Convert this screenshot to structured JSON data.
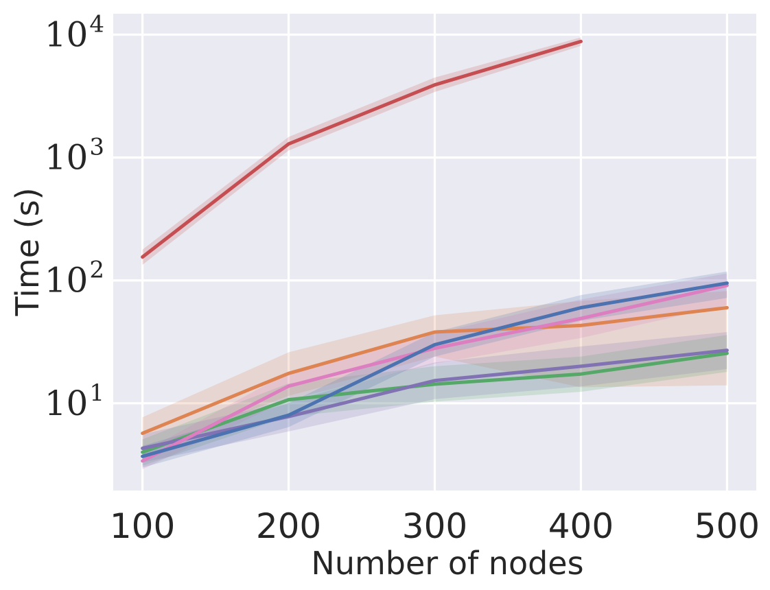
{
  "figure": {
    "background": "#ffffff",
    "plot_background": "#eaeaf2",
    "grid_color": "#ffffff",
    "text_color": "#262626"
  },
  "axes": {
    "x_label": "Number of nodes",
    "y_label": "Time (s)",
    "x_ticks": [
      {
        "label": "100",
        "value": 100
      },
      {
        "label": "200",
        "value": 200
      },
      {
        "label": "300",
        "value": 300
      },
      {
        "label": "400",
        "value": 400
      },
      {
        "label": "500",
        "value": 500
      }
    ],
    "y_ticks": [
      {
        "base": "10",
        "exponent": "4",
        "value": 10000
      },
      {
        "base": "10",
        "exponent": "3",
        "value": 1000
      },
      {
        "base": "10",
        "exponent": "2",
        "value": 100
      },
      {
        "base": "10",
        "exponent": "1",
        "value": 10
      }
    ]
  },
  "chart_data": {
    "type": "line",
    "title": "",
    "xlabel": "Number of nodes",
    "ylabel": "Time (s)",
    "x_scale": "linear",
    "y_scale": "log",
    "xlim": [
      80,
      520
    ],
    "ylim": [
      1.95,
      14800
    ],
    "grid": true,
    "legend": false,
    "band_opacity": 0.2,
    "x": [
      100,
      200,
      300,
      400,
      500
    ],
    "series": [
      {
        "name": "orange",
        "color": "#dd8452",
        "x": [
          100,
          200,
          300,
          400,
          500
        ],
        "values": [
          5.7,
          17.5,
          38,
          43,
          60
        ],
        "ci_lower": [
          4.0,
          11.5,
          24,
          13.5,
          14
        ],
        "ci_upper": [
          7.7,
          26,
          52,
          68,
          82
        ]
      },
      {
        "name": "green",
        "color": "#55a868",
        "x": [
          100,
          200,
          300,
          400,
          500
        ],
        "values": [
          4.0,
          10.7,
          14.3,
          17.3,
          25.5
        ],
        "ci_lower": [
          3.1,
          7.8,
          10.3,
          12.4,
          18
        ],
        "ci_upper": [
          5.1,
          14.5,
          20,
          24,
          36
        ]
      },
      {
        "name": "purple",
        "color": "#8172b3",
        "x": [
          100,
          200,
          300,
          400,
          500
        ],
        "values": [
          4.3,
          7.8,
          15.3,
          20,
          27
        ],
        "ci_lower": [
          3.3,
          5.9,
          10.8,
          13.7,
          19
        ],
        "ci_upper": [
          5.6,
          10.3,
          21.5,
          29,
          38
        ]
      },
      {
        "name": "pink",
        "color": "#dc7ec0",
        "x": [
          100,
          200,
          300,
          400,
          500
        ],
        "values": [
          3.4,
          13.8,
          28,
          49,
          91
        ],
        "ci_lower": [
          2.9,
          10.7,
          21,
          34,
          63
        ],
        "ci_upper": [
          4.0,
          17.8,
          37,
          70,
          114
        ]
      },
      {
        "name": "blue",
        "color": "#4c72b0",
        "x": [
          100,
          200,
          300,
          400,
          500
        ],
        "values": [
          3.7,
          8.0,
          30,
          60,
          95
        ],
        "ci_lower": [
          3.0,
          6.4,
          24,
          47,
          72
        ],
        "ci_upper": [
          4.5,
          10.0,
          38,
          76,
          118
        ]
      },
      {
        "name": "red",
        "color": "#c44e52",
        "x": [
          100,
          200,
          300,
          400
        ],
        "values": [
          155,
          1290,
          3900,
          8800
        ],
        "ci_lower": [
          134,
          1140,
          3420,
          8100
        ],
        "ci_upper": [
          178,
          1470,
          4480,
          9500
        ]
      }
    ]
  }
}
